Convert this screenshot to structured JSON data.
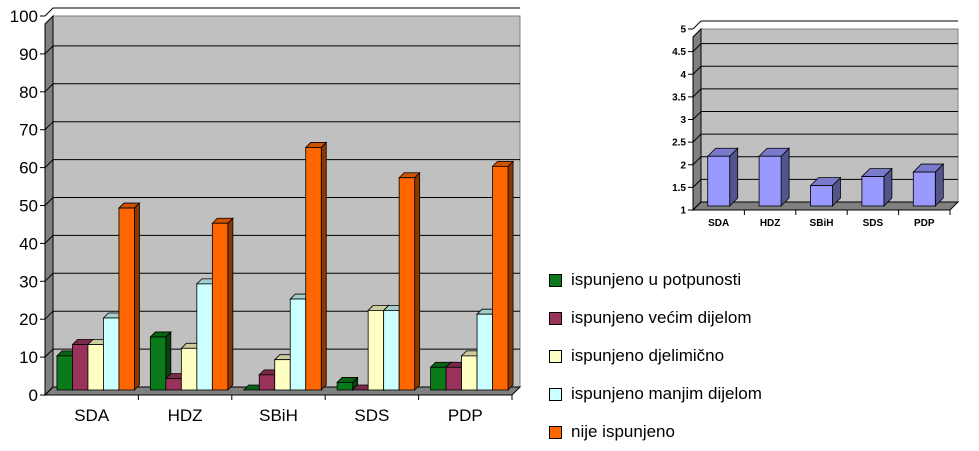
{
  "chart_data": [
    {
      "type": "bar",
      "categories": [
        "SDA",
        "HDZ",
        "SBiH",
        "SDS",
        "PDP"
      ],
      "ylim": [
        0,
        100
      ],
      "yticks": [
        "0",
        "10",
        "20",
        "30",
        "40",
        "50",
        "60",
        "70",
        "80",
        "90",
        "100"
      ],
      "grid": true,
      "legend_position": "right-bottom",
      "series": [
        {
          "name": "ispunjeno u potpunosti",
          "color": "#0a7a1a",
          "values": [
            9,
            14,
            0,
            2,
            6
          ]
        },
        {
          "name": "ispunjeno većim dijelom",
          "color": "#99335b",
          "values": [
            12,
            3,
            4,
            0,
            6
          ]
        },
        {
          "name": "ispunjeno djelimično",
          "color": "#ffffc4",
          "values": [
            12,
            11,
            8,
            21,
            9
          ]
        },
        {
          "name": "ispunjeno manjim dijelom",
          "color": "#ccffff",
          "values": [
            19,
            28,
            24,
            21,
            20
          ]
        },
        {
          "name": "nije ispunjeno",
          "color": "#ff6600",
          "values": [
            48,
            44,
            64,
            56,
            59
          ]
        }
      ]
    },
    {
      "type": "bar",
      "categories": [
        "SDA",
        "HDZ",
        "SBiH",
        "SDS",
        "PDP"
      ],
      "ylim": [
        1,
        5
      ],
      "yticks": [
        "1",
        "1.5",
        "2",
        "2.5",
        "3",
        "3.5",
        "4",
        "4.5",
        "5"
      ],
      "grid": true,
      "series": [
        {
          "color": "#9999ff",
          "values": [
            2.1,
            2.1,
            1.45,
            1.65,
            1.75
          ]
        }
      ]
    }
  ]
}
